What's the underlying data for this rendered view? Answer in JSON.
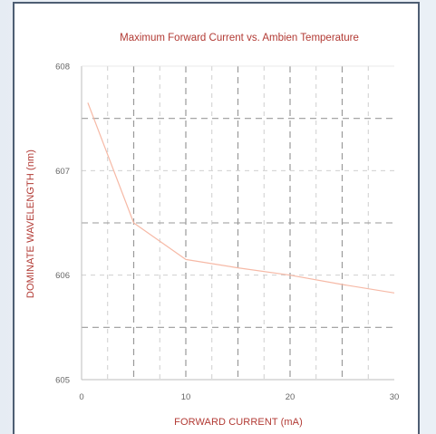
{
  "chart_data": {
    "type": "line",
    "title": "Maximum Forward Current vs. Ambien Temperature",
    "xlabel": "FORWARD CURRENT (mA)",
    "ylabel": "DOMINATE WAVELENGTH (nm)",
    "xlim": [
      0,
      30
    ],
    "ylim": [
      605,
      608
    ],
    "xticks": [
      0,
      10,
      20,
      30
    ],
    "yticks": [
      605,
      606,
      607,
      608
    ],
    "x_tick_labels": [
      "0",
      "10",
      "20",
      "30"
    ],
    "y_tick_labels": [
      "605",
      "606",
      "607",
      "608"
    ],
    "grid": true,
    "series": [
      {
        "color": "#f6b9a6",
        "x": [
          0.6,
          5,
          10,
          15,
          20,
          25,
          30
        ],
        "y": [
          607.65,
          606.5,
          606.15,
          606.07,
          606.0,
          605.91,
          605.83
        ]
      }
    ]
  },
  "colors": {
    "title": "#b23a34",
    "line": "#f6b9a6",
    "grid_dark": "#9a9a9a",
    "grid_light": "#c9c9c9",
    "frame": "#4e5e73"
  }
}
